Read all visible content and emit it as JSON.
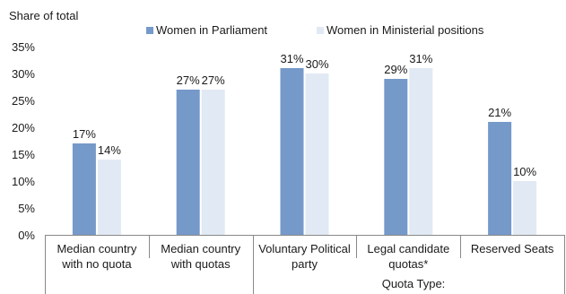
{
  "chart_data": {
    "type": "bar",
    "ylabel": "Share of total",
    "xgroup_label": "Quota Type:",
    "ylim": [
      0,
      35
    ],
    "yticks": [
      "0%",
      "5%",
      "10%",
      "15%",
      "20%",
      "25%",
      "30%",
      "35%"
    ],
    "grid": false,
    "legend_position": "top",
    "categories": [
      [
        "Median country",
        "with no quota"
      ],
      [
        "Median country",
        "with quotas"
      ],
      [
        "Voluntary Political",
        "party"
      ],
      [
        "Legal candidate",
        "quotas*"
      ],
      [
        "Reserved Seats"
      ]
    ],
    "series": [
      {
        "name": "Women in Parliament",
        "color": "#7599c9",
        "values": [
          17,
          27,
          31,
          29,
          21
        ],
        "labels": [
          "17%",
          "27%",
          "31%",
          "29%",
          "21%"
        ]
      },
      {
        "name": "Women in Ministerial positions",
        "color": "#e1e9f4",
        "values": [
          14,
          27,
          30,
          31,
          10
        ],
        "labels": [
          "14%",
          "27%",
          "30%",
          "31%",
          "10%"
        ]
      }
    ]
  }
}
